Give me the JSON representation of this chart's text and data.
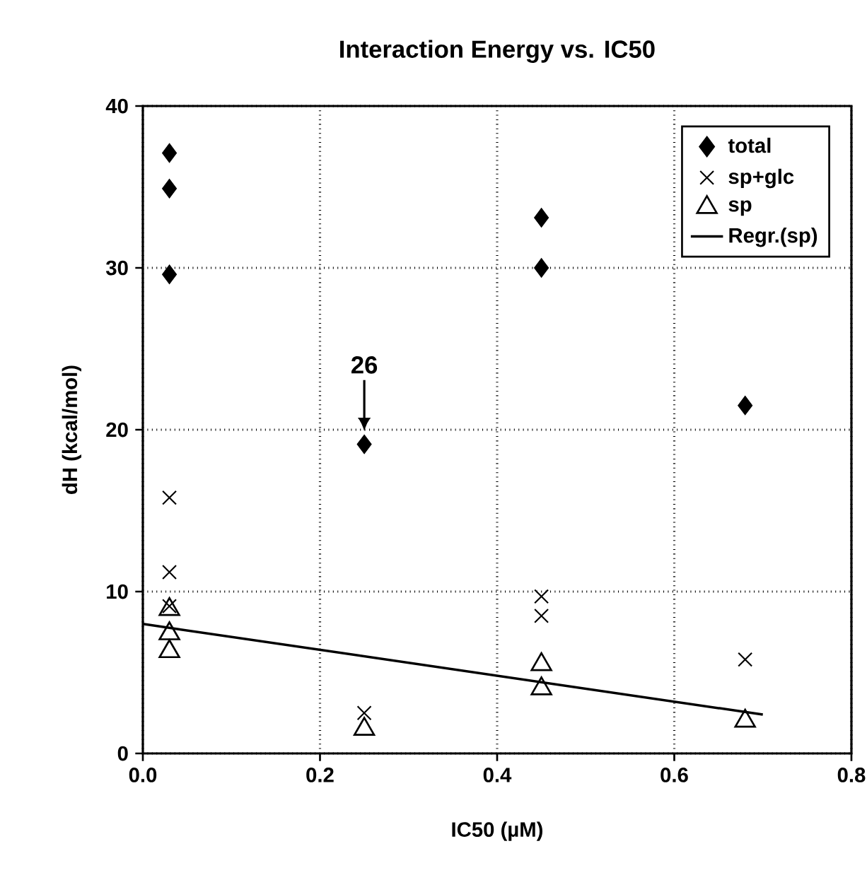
{
  "chart_data": {
    "type": "scatter",
    "title": "Interaction Energy vs. IC50",
    "xlabel": "IC50 (µM)",
    "ylabel": "dH (kcal/mol)",
    "xlim": [
      0,
      0.8
    ],
    "ylim": [
      0,
      40
    ],
    "xticks": [
      {
        "value": 0,
        "label": "0.0"
      },
      {
        "value": 0.2,
        "label": "0.2"
      },
      {
        "value": 0.4,
        "label": "0.4"
      },
      {
        "value": 0.6,
        "label": "0.6"
      },
      {
        "value": 0.8,
        "label": "0.8"
      }
    ],
    "yticks": [
      0,
      10,
      20,
      30,
      40
    ],
    "grid": true,
    "legend": "top right",
    "series": [
      {
        "name": "total",
        "color": "#000000",
        "marker": "diamond",
        "x": [
          0.03,
          0.03,
          0.03,
          0.25,
          0.45,
          0.45,
          0.68
        ],
        "values": [
          37.1,
          34.9,
          29.6,
          19.1,
          33.1,
          30.0,
          21.5
        ]
      },
      {
        "name": "sp+glc",
        "color": "#000000",
        "marker": "cross",
        "x": [
          0.03,
          0.03,
          0.03,
          0.25,
          0.45,
          0.45,
          0.68
        ],
        "values": [
          15.8,
          11.2,
          9.1,
          2.5,
          9.7,
          8.5,
          5.8
        ]
      },
      {
        "name": "sp",
        "color": "#000000",
        "marker": "triangle",
        "x": [
          0.03,
          0.03,
          0.03,
          0.25,
          0.45,
          0.45,
          0.68
        ],
        "values": [
          8.9,
          7.4,
          6.3,
          1.5,
          5.5,
          4.0,
          2.0
        ]
      },
      {
        "name": "Regr.(sp)",
        "type": "line",
        "color": "#000000",
        "marker": "none",
        "line_style": "solid",
        "x": [
          0,
          0.7
        ],
        "values": [
          8.0,
          2.4
        ]
      }
    ],
    "annotations": [
      "26"
    ]
  }
}
